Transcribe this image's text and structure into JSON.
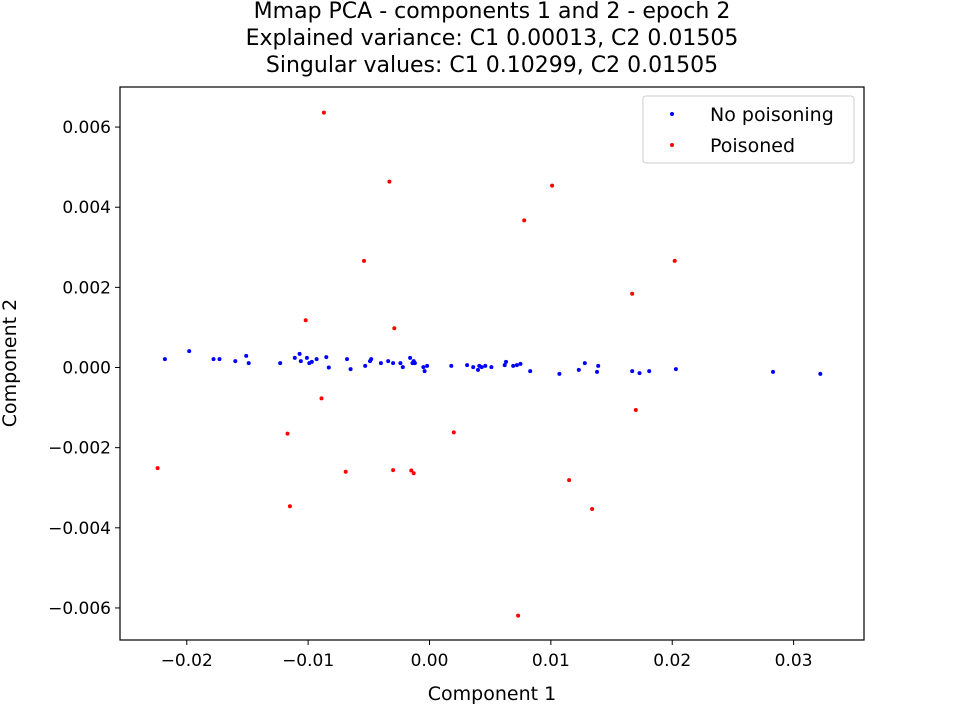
{
  "chart_data": {
    "type": "scatter",
    "title_lines": [
      "Mmap PCA - components 1 and 2 - epoch 2",
      "Explained variance: C1 0.00013, C2 0.01505",
      "Singular values: C1 0.10299, C2 0.01505"
    ],
    "xlabel": "Component 1",
    "ylabel": "Component 2",
    "xlim": [
      -0.0255,
      0.0358
    ],
    "ylim": [
      -0.0068,
      0.007
    ],
    "x_ticks": [
      -0.02,
      -0.01,
      0.0,
      0.01,
      0.02,
      0.03
    ],
    "x_tick_labels": [
      "−0.02",
      "−0.01",
      "0.00",
      "0.01",
      "0.02",
      "0.03"
    ],
    "y_ticks": [
      -0.006,
      -0.004,
      -0.002,
      0.0,
      0.002,
      0.004,
      0.006
    ],
    "y_tick_labels": [
      "−0.006",
      "−0.004",
      "−0.002",
      "0.000",
      "0.002",
      "0.004",
      "0.006"
    ],
    "grid": false,
    "legend_position": "top-right",
    "series": [
      {
        "name": "No poisoning",
        "color": "#0000ff",
        "points": [
          [
            -0.0218,
            0.00021
          ],
          [
            -0.0198,
            0.00041
          ],
          [
            -0.0178,
            0.00021
          ],
          [
            -0.0173,
            0.00021
          ],
          [
            -0.016,
            0.00016
          ],
          [
            -0.0151,
            0.00029
          ],
          [
            -0.0149,
            0.00011
          ],
          [
            -0.0123,
            0.00011
          ],
          [
            -0.0111,
            0.00024
          ],
          [
            -0.0107,
            0.00034
          ],
          [
            -0.0106,
            0.00016
          ],
          [
            -0.0101,
            0.00024
          ],
          [
            -0.0099,
            0.00011
          ],
          [
            -0.0097,
            0.00014
          ],
          [
            -0.0093,
            0.00021
          ],
          [
            -0.0085,
            0.00026
          ],
          [
            -0.0083,
            0.0
          ],
          [
            -0.0068,
            0.00021
          ],
          [
            -0.0065,
            -4e-05
          ],
          [
            -0.0053,
            4e-05
          ],
          [
            -0.0049,
            0.00016
          ],
          [
            -0.0048,
            0.00021
          ],
          [
            -0.004,
            0.00011
          ],
          [
            -0.0034,
            0.00016
          ],
          [
            -0.003,
            0.00011
          ],
          [
            -0.0024,
            0.00011
          ],
          [
            -0.0022,
            1e-05
          ],
          [
            -0.0016,
            0.00024
          ],
          [
            -0.0014,
            0.00011
          ],
          [
            -0.0013,
            0.00016
          ],
          [
            -0.0012,
            0.00011
          ],
          [
            -0.0005,
            1e-05
          ],
          [
            -0.0004,
            -9e-05
          ],
          [
            -0.0002,
            4e-05
          ],
          [
            0.0018,
            4e-05
          ],
          [
            0.0031,
            6e-05
          ],
          [
            0.0036,
            1e-05
          ],
          [
            0.004,
            -6e-05
          ],
          [
            0.0041,
            4e-05
          ],
          [
            0.0043,
            1e-05
          ],
          [
            0.0046,
            4e-05
          ],
          [
            0.0051,
            1e-05
          ],
          [
            0.0062,
            6e-05
          ],
          [
            0.0063,
            0.00014
          ],
          [
            0.0069,
            4e-05
          ],
          [
            0.0072,
            6e-05
          ],
          [
            0.0075,
            9e-05
          ],
          [
            0.0083,
            -9e-05
          ],
          [
            0.0107,
            -0.00016
          ],
          [
            0.0123,
            -6e-05
          ],
          [
            0.0128,
            0.00011
          ],
          [
            0.0138,
            -0.00011
          ],
          [
            0.0139,
            4e-05
          ],
          [
            0.0167,
            -9e-05
          ],
          [
            0.0173,
            -0.00014
          ],
          [
            0.0181,
            -9e-05
          ],
          [
            0.0203,
            -4e-05
          ],
          [
            0.0283,
            -0.00011
          ],
          [
            0.0322,
            -0.00016
          ]
        ]
      },
      {
        "name": "Poisoned",
        "color": "#ff0000",
        "points": [
          [
            -0.0087,
            0.00636
          ],
          [
            -0.0033,
            0.00464
          ],
          [
            0.0101,
            0.00454
          ],
          [
            0.0078,
            0.00367
          ],
          [
            -0.0054,
            0.00266
          ],
          [
            0.0202,
            0.00266
          ],
          [
            0.0167,
            0.00184
          ],
          [
            -0.0102,
            0.00118
          ],
          [
            -0.0029,
            0.00098
          ],
          [
            0.017,
            -0.00106
          ],
          [
            -0.0089,
            -0.00077
          ],
          [
            -0.0117,
            -0.00165
          ],
          [
            0.002,
            -0.00162
          ],
          [
            -0.0224,
            -0.00251
          ],
          [
            -0.0069,
            -0.0026
          ],
          [
            -0.003,
            -0.00256
          ],
          [
            -0.0015,
            -0.00257
          ],
          [
            -0.0013,
            -0.00264
          ],
          [
            0.0115,
            -0.00281
          ],
          [
            -0.0115,
            -0.00346
          ],
          [
            0.0134,
            -0.00353
          ],
          [
            0.0073,
            -0.00619
          ]
        ]
      }
    ]
  }
}
